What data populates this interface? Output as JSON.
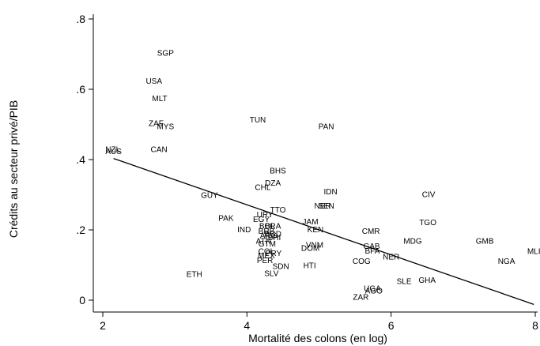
{
  "chart_data": {
    "type": "scatter",
    "xlabel": "Mortalité des colons (en log)",
    "ylabel": "Crédits au secteur privé/PIB",
    "xlim": [
      2,
      8
    ],
    "ylim": [
      0,
      0.8
    ],
    "x_ticks": [
      {
        "value": 2,
        "label": "2"
      },
      {
        "value": 4,
        "label": "4"
      },
      {
        "value": 6,
        "label": "6"
      },
      {
        "value": 8,
        "label": "8"
      }
    ],
    "y_ticks": [
      {
        "value": 0,
        "label": "0"
      },
      {
        "value": 0.2,
        "label": ".2"
      },
      {
        "value": 0.4,
        "label": ".4"
      },
      {
        "value": 0.6,
        "label": ".6"
      },
      {
        "value": 0.8,
        "label": ".8"
      }
    ],
    "grid": false,
    "marker": "country-code label",
    "points": [
      {
        "label": "SGP",
        "x": 2.87,
        "y": 0.705
      },
      {
        "label": "USA",
        "x": 2.71,
        "y": 0.625
      },
      {
        "label": "MLT",
        "x": 2.79,
        "y": 0.575
      },
      {
        "label": "ZAF",
        "x": 2.74,
        "y": 0.505
      },
      {
        "label": "MYS",
        "x": 2.87,
        "y": 0.495
      },
      {
        "label": "CAN",
        "x": 2.78,
        "y": 0.43
      },
      {
        "label": "NZL",
        "x": 2.14,
        "y": 0.43
      },
      {
        "label": "AUS",
        "x": 2.15,
        "y": 0.425
      },
      {
        "label": "TUN",
        "x": 4.15,
        "y": 0.515
      },
      {
        "label": "PAN",
        "x": 5.1,
        "y": 0.495
      },
      {
        "label": "BHS",
        "x": 4.43,
        "y": 0.37
      },
      {
        "label": "DZA",
        "x": 4.36,
        "y": 0.335
      },
      {
        "label": "CHL",
        "x": 4.22,
        "y": 0.322
      },
      {
        "label": "IDN",
        "x": 5.16,
        "y": 0.31
      },
      {
        "label": "CIV",
        "x": 6.52,
        "y": 0.302
      },
      {
        "label": "GUY",
        "x": 3.48,
        "y": 0.3
      },
      {
        "label": "SEN",
        "x": 5.1,
        "y": 0.27
      },
      {
        "label": "NER",
        "x": 5.05,
        "y": 0.27
      },
      {
        "label": "TTO",
        "x": 4.43,
        "y": 0.258
      },
      {
        "label": "URY",
        "x": 4.25,
        "y": 0.245
      },
      {
        "label": "PAK",
        "x": 3.71,
        "y": 0.235
      },
      {
        "label": "EGY",
        "x": 4.2,
        "y": 0.232
      },
      {
        "label": "JAM",
        "x": 4.88,
        "y": 0.225
      },
      {
        "label": "TGO",
        "x": 6.51,
        "y": 0.222
      },
      {
        "label": "BOL",
        "x": 4.28,
        "y": 0.212
      },
      {
        "label": "BRA",
        "x": 4.36,
        "y": 0.212
      },
      {
        "label": "IND",
        "x": 3.96,
        "y": 0.202
      },
      {
        "label": "BRB",
        "x": 4.27,
        "y": 0.198
      },
      {
        "label": "KEN",
        "x": 4.95,
        "y": 0.202
      },
      {
        "label": "CMR",
        "x": 5.72,
        "y": 0.198
      },
      {
        "label": "ARG",
        "x": 4.3,
        "y": 0.185
      },
      {
        "label": "BGD",
        "x": 4.36,
        "y": 0.19
      },
      {
        "label": "BHI",
        "x": 4.38,
        "y": 0.18
      },
      {
        "label": "MDG",
        "x": 6.3,
        "y": 0.17
      },
      {
        "label": "GMB",
        "x": 7.3,
        "y": 0.17
      },
      {
        "label": "ATN",
        "x": 4.23,
        "y": 0.17
      },
      {
        "label": "GTM",
        "x": 4.28,
        "y": 0.162
      },
      {
        "label": "VNM",
        "x": 4.94,
        "y": 0.158
      },
      {
        "label": "DOM",
        "x": 4.88,
        "y": 0.15
      },
      {
        "label": "GAB",
        "x": 5.73,
        "y": 0.155
      },
      {
        "label": "BFA",
        "x": 5.74,
        "y": 0.142
      },
      {
        "label": "PRY",
        "x": 4.37,
        "y": 0.135
      },
      {
        "label": "COL",
        "x": 4.27,
        "y": 0.14
      },
      {
        "label": "MEX",
        "x": 4.27,
        "y": 0.128
      },
      {
        "label": "NER",
        "x": 6.0,
        "y": 0.125
      },
      {
        "label": "PER",
        "x": 4.25,
        "y": 0.115
      },
      {
        "label": "COG",
        "x": 5.59,
        "y": 0.112
      },
      {
        "label": "NGA",
        "x": 7.6,
        "y": 0.112
      },
      {
        "label": "MLI",
        "x": 7.98,
        "y": 0.14
      },
      {
        "label": "HTI",
        "x": 4.87,
        "y": 0.1
      },
      {
        "label": "SDN",
        "x": 4.47,
        "y": 0.098
      },
      {
        "label": "SLV",
        "x": 4.34,
        "y": 0.078
      },
      {
        "label": "ETH",
        "x": 3.27,
        "y": 0.075
      },
      {
        "label": "SLE",
        "x": 6.18,
        "y": 0.055
      },
      {
        "label": "GHA",
        "x": 6.5,
        "y": 0.058
      },
      {
        "label": "UGA",
        "x": 5.74,
        "y": 0.035
      },
      {
        "label": "AGO",
        "x": 5.76,
        "y": 0.028
      },
      {
        "label": "ZAR",
        "x": 5.58,
        "y": 0.01
      }
    ],
    "fit_line": {
      "x": [
        2.15,
        7.98
      ],
      "y": [
        0.403,
        -0.012
      ]
    }
  }
}
